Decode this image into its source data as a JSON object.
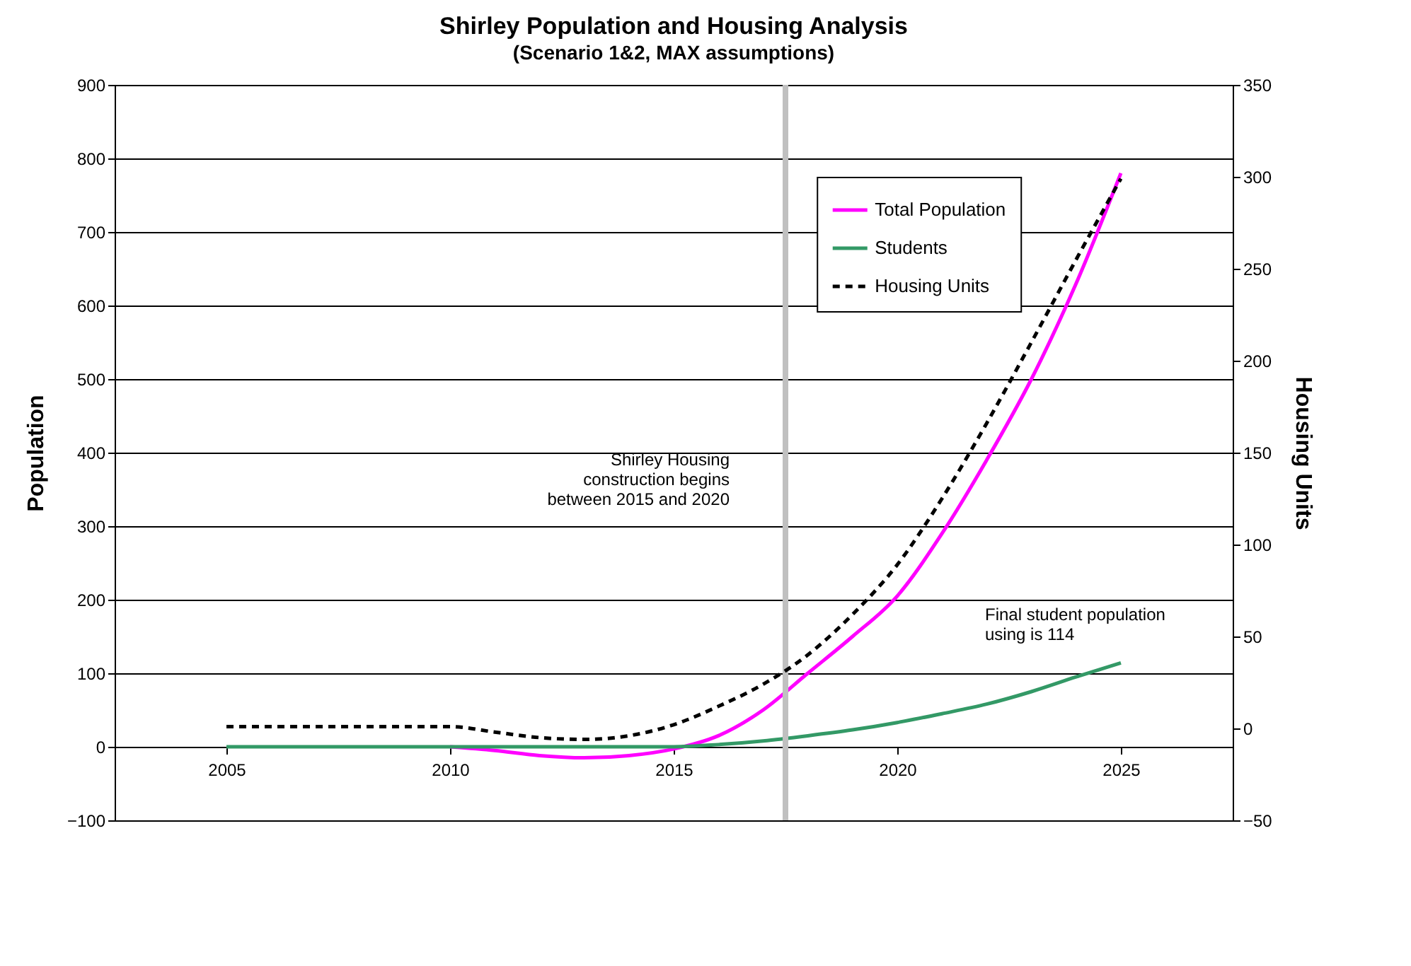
{
  "chart_data": {
    "type": "line",
    "title": "Shirley Population and Housing Analysis",
    "subtitle": "(Scenario 1&2, MAX assumptions)",
    "ylabel": "Population",
    "y2label": "Housing Units",
    "x": [
      2005,
      2006,
      2007,
      2008,
      2009,
      2010,
      2011,
      2012,
      2013,
      2014,
      2015,
      2016,
      2017,
      2018,
      2019,
      2020,
      2021,
      2022,
      2023,
      2024,
      2025
    ],
    "series": [
      {
        "name": "Total Population",
        "color": "#ff00ff",
        "line_style": "solid",
        "values": [
          null,
          null,
          null,
          null,
          null,
          0,
          -5,
          -12,
          -15,
          -12,
          -3,
          15,
          50,
          100,
          150,
          205,
          290,
          390,
          500,
          630,
          780
        ]
      },
      {
        "name": "Students",
        "color": "#339966",
        "line_style": "solid",
        "values": [
          0,
          0,
          0,
          0,
          0,
          0,
          0,
          0,
          0,
          0,
          0,
          3,
          8,
          15,
          23,
          33,
          45,
          58,
          75,
          95,
          114
        ]
      },
      {
        "name": "Housing Units",
        "color": "#000000",
        "line_style": "dashed",
        "axis": "y2",
        "values": [
          1,
          1,
          1,
          1,
          1,
          1,
          -2,
          -5,
          -6,
          -4,
          2,
          12,
          24,
          40,
          62,
          89,
          125,
          166,
          210,
          255,
          299
        ]
      }
    ],
    "xlim": [
      2002.5,
      2027.5
    ],
    "xticks": [
      2005,
      2010,
      2015,
      2020,
      2025
    ],
    "ylim": [
      -100,
      900
    ],
    "yticks": [
      -100,
      0,
      100,
      200,
      300,
      400,
      500,
      600,
      700,
      800,
      900
    ],
    "y2lim": [
      -50,
      350
    ],
    "y2ticks": [
      -50,
      0,
      50,
      100,
      150,
      200,
      250,
      300,
      350
    ],
    "grid": "y",
    "legend": "top right",
    "marker": "none",
    "ref_lines": [
      {
        "axis": "x",
        "value": 2017.5,
        "color": "#c0c0c0"
      }
    ],
    "annotations": [
      "Shirley Housing construction begins between 2015 and 2020",
      {
        "text": "Final student population using is 114",
        "x": 2025,
        "y": 114
      }
    ]
  }
}
